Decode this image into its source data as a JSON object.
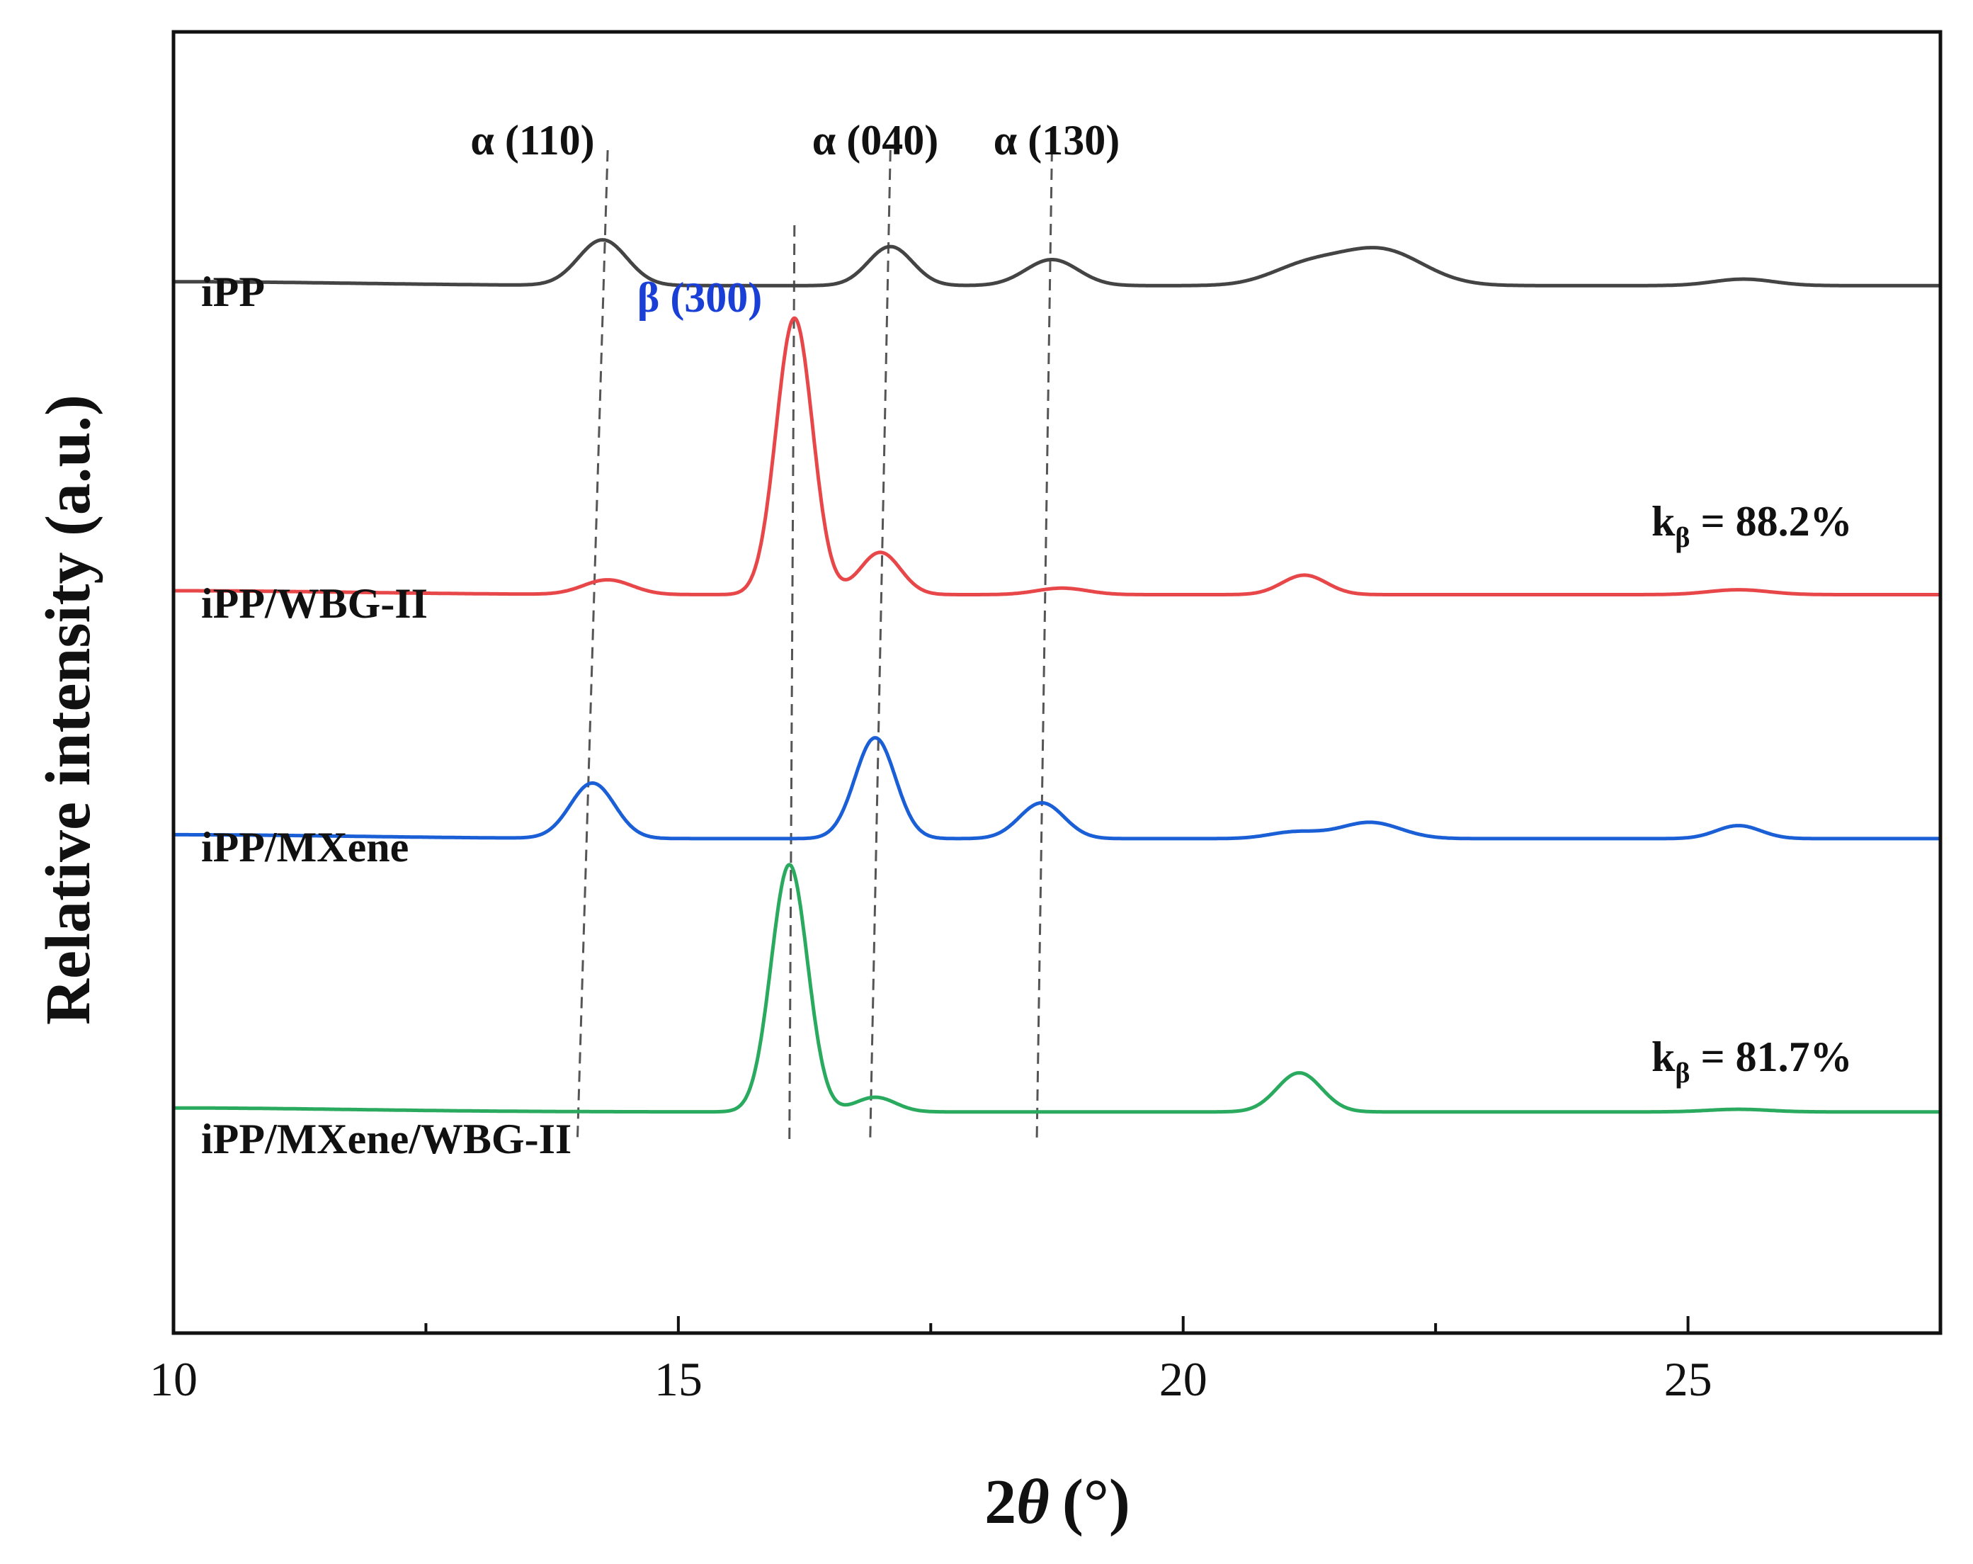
{
  "chart_data": {
    "type": "line",
    "title": "",
    "xlabel_main": "2",
    "xlabel_symbol": "θ",
    "xlabel_unit": "(°)",
    "ylabel": "Relative intensity (a.u.)",
    "xlim": [
      10,
      27.5
    ],
    "ylim": [
      0,
      4
    ],
    "x_ticks": [
      10,
      15,
      20,
      25
    ],
    "x_tick_labels": [
      "10",
      "15",
      "20",
      "25"
    ],
    "x_minor_ticks": [
      12.5,
      17.5,
      22.5
    ],
    "y_ticks": [],
    "grid": false,
    "legend": "none",
    "series": [
      {
        "name": "iPP",
        "label": "iPP",
        "color": "#444444",
        "offset": 3.22,
        "peaks": [
          {
            "x": 14.25,
            "h": 0.14,
            "w": 0.24
          },
          {
            "x": 17.1,
            "h": 0.12,
            "w": 0.22
          },
          {
            "x": 18.7,
            "h": 0.08,
            "w": 0.26
          },
          {
            "x": 21.2,
            "h": 0.055,
            "w": 0.35
          },
          {
            "x": 21.95,
            "h": 0.11,
            "w": 0.42
          },
          {
            "x": 25.55,
            "h": 0.02,
            "w": 0.3
          }
        ]
      },
      {
        "name": "iPP/WBG-II",
        "label": "iPP/WBG-II",
        "color": "#e8474a",
        "offset": 2.27,
        "peaks": [
          {
            "x": 14.3,
            "h": 0.045,
            "w": 0.24
          },
          {
            "x": 16.15,
            "h": 0.85,
            "w": 0.18
          },
          {
            "x": 17.0,
            "h": 0.13,
            "w": 0.2
          },
          {
            "x": 18.8,
            "h": 0.02,
            "w": 0.25
          },
          {
            "x": 21.2,
            "h": 0.06,
            "w": 0.22
          },
          {
            "x": 25.5,
            "h": 0.015,
            "w": 0.3
          }
        ]
      },
      {
        "name": "iPP/MXene",
        "label": "iPP/MXene",
        "color": "#1a5fd6",
        "offset": 1.52,
        "peaks": [
          {
            "x": 14.15,
            "h": 0.17,
            "w": 0.22
          },
          {
            "x": 16.95,
            "h": 0.31,
            "w": 0.2
          },
          {
            "x": 18.6,
            "h": 0.11,
            "w": 0.22
          },
          {
            "x": 21.1,
            "h": 0.02,
            "w": 0.25
          },
          {
            "x": 21.85,
            "h": 0.05,
            "w": 0.3
          },
          {
            "x": 25.5,
            "h": 0.04,
            "w": 0.22
          }
        ]
      },
      {
        "name": "iPP/MXene/WBG-II",
        "label": "iPP/MXene/WBG-II",
        "color": "#2aaa5e",
        "offset": 0.68,
        "peaks": [
          {
            "x": 16.1,
            "h": 0.76,
            "w": 0.18
          },
          {
            "x": 16.95,
            "h": 0.045,
            "w": 0.2
          },
          {
            "x": 21.15,
            "h": 0.12,
            "w": 0.22
          },
          {
            "x": 25.5,
            "h": 0.008,
            "w": 0.3
          }
        ]
      }
    ],
    "guide_lines": [
      {
        "x_top": 14.3,
        "x_bottom": 14.0,
        "top_label": "α (110)"
      },
      {
        "x_top": 16.15,
        "x_bottom": 16.1,
        "top_label": "β (300)"
      },
      {
        "x_top": 17.1,
        "x_bottom": 16.9,
        "top_label": "α (040)"
      },
      {
        "x_top": 18.7,
        "x_bottom": 18.55,
        "top_label": "α (130)"
      }
    ],
    "peak_labels": [
      {
        "text": "α (110)",
        "color": "#222222"
      },
      {
        "text": "α (040)",
        "color": "#222222"
      },
      {
        "text": "α (130)",
        "color": "#222222"
      },
      {
        "text": "β (300)",
        "color": "#1a3fd6"
      }
    ],
    "annotations": [
      {
        "prefix": "k",
        "subscript": "β",
        "suffix": " = 88.2%",
        "series": "iPP/WBG-II"
      },
      {
        "prefix": "k",
        "subscript": "β",
        "suffix": " = 81.7%",
        "series": "iPP/MXene/WBG-II"
      }
    ]
  }
}
